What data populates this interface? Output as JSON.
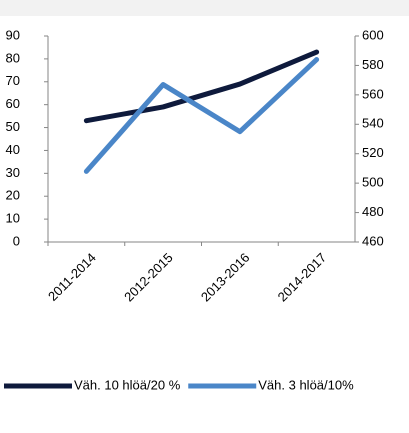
{
  "chart_data": {
    "type": "line",
    "categories": [
      "2011-2014",
      "2012-2015",
      "2013-2016",
      "2014-2017"
    ],
    "series": [
      {
        "name": "Väh. 10 hlöä/20 %",
        "color": "#0e1a3c",
        "values": [
          53,
          59,
          69,
          83
        ]
      },
      {
        "name": "Väh. 3 hlöä/10%",
        "color": "#4a86c8",
        "values": [
          508,
          567,
          535,
          584
        ],
        "axis": "y2"
      }
    ],
    "ylim": [
      0,
      90
    ],
    "yticks": [
      0,
      10,
      20,
      30,
      40,
      50,
      60,
      70,
      80,
      90
    ],
    "y2lim": [
      460,
      600
    ],
    "y2ticks": [
      460,
      480,
      500,
      520,
      540,
      560,
      580,
      600
    ],
    "grid": false,
    "legend": "bottom"
  }
}
